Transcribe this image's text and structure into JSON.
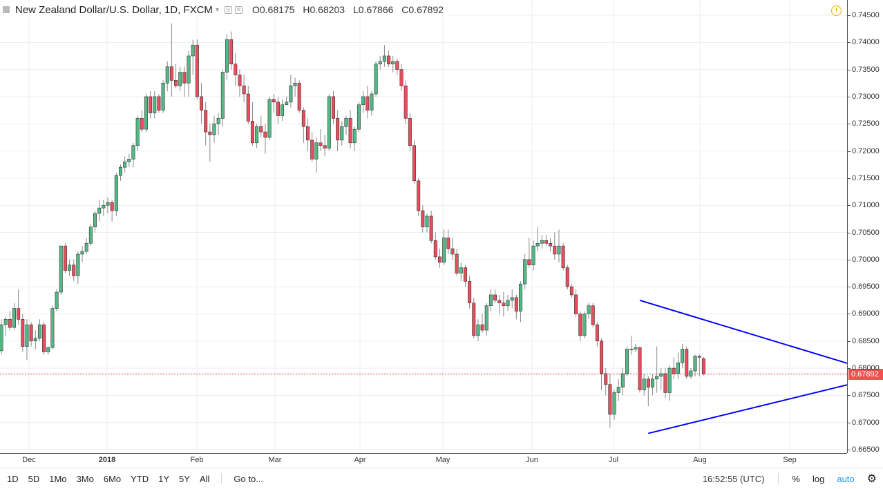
{
  "legend": {
    "title": "New Zealand Dollar/U.S. Dollar, 1D, FXCM",
    "caret": "▾",
    "open_label": "O",
    "open": "0.68175",
    "high_label": "H",
    "high": "0.68203",
    "low_label": "L",
    "low": "0.67866",
    "close_label": "C",
    "close": "0.67892"
  },
  "alert_icon": "alert-clock-icon",
  "last_price_label": "0.67892",
  "toolbar": {
    "ranges": [
      "1D",
      "5D",
      "1Mo",
      "3Mo",
      "6Mo",
      "YTD",
      "1Y",
      "5Y",
      "All"
    ],
    "goto": "Go to...",
    "clock": "16:52:55 (UTC)",
    "percent": "%",
    "log": "log",
    "auto": "auto",
    "settings_icon": "gear-icon"
  },
  "colors": {
    "up": "#53b987",
    "down": "#eb4d5c",
    "wick": "#888888",
    "trendline": "#0000ff",
    "grid": "#e9edf2",
    "last_price_line": "#d32f2f"
  },
  "chart_data": {
    "type": "candlestick",
    "title": "New Zealand Dollar/U.S. Dollar, 1D, FXCM",
    "ylim": [
      0.6645,
      0.7465
    ],
    "y_ticks": [
      "0.74500",
      "0.74000",
      "0.73500",
      "0.73000",
      "0.72500",
      "0.72000",
      "0.71500",
      "0.71000",
      "0.70500",
      "0.70000",
      "0.69500",
      "0.69000",
      "0.68500",
      "0.68000",
      "0.67500",
      "0.67000",
      "0.66500"
    ],
    "x_ticks": [
      "Dec",
      "2018",
      "Feb",
      "Mar",
      "Apr",
      "May",
      "Jun",
      "Jul",
      "Aug",
      "Sep"
    ],
    "last_price": 0.67892,
    "grid": true,
    "candles_ohlc": [
      [
        0.6832,
        0.689,
        0.6825,
        0.688
      ],
      [
        0.688,
        0.6895,
        0.686,
        0.689
      ],
      [
        0.689,
        0.6905,
        0.687,
        0.6875
      ],
      [
        0.6875,
        0.692,
        0.687,
        0.691
      ],
      [
        0.691,
        0.6945,
        0.688,
        0.689
      ],
      [
        0.689,
        0.69,
        0.683,
        0.684
      ],
      [
        0.684,
        0.689,
        0.6815,
        0.688
      ],
      [
        0.688,
        0.6885,
        0.684,
        0.685
      ],
      [
        0.685,
        0.687,
        0.6835,
        0.6855
      ],
      [
        0.6855,
        0.689,
        0.685,
        0.688
      ],
      [
        0.688,
        0.6885,
        0.6825,
        0.683
      ],
      [
        0.683,
        0.684,
        0.6825,
        0.6838
      ],
      [
        0.6838,
        0.6915,
        0.6835,
        0.691
      ],
      [
        0.691,
        0.6945,
        0.6905,
        0.694
      ],
      [
        0.694,
        0.7025,
        0.6935,
        0.7025
      ],
      [
        0.7025,
        0.703,
        0.6975,
        0.698
      ],
      [
        0.698,
        0.7,
        0.697,
        0.699
      ],
      [
        0.699,
        0.7,
        0.696,
        0.697
      ],
      [
        0.697,
        0.7015,
        0.6955,
        0.701
      ],
      [
        0.701,
        0.7025,
        0.6995,
        0.7015
      ],
      [
        0.7015,
        0.704,
        0.701,
        0.703
      ],
      [
        0.703,
        0.7065,
        0.7025,
        0.706
      ],
      [
        0.706,
        0.709,
        0.705,
        0.7085
      ],
      [
        0.7085,
        0.711,
        0.707,
        0.7095
      ],
      [
        0.7095,
        0.711,
        0.708,
        0.71
      ],
      [
        0.71,
        0.7115,
        0.7085,
        0.7105
      ],
      [
        0.7105,
        0.711,
        0.707,
        0.709
      ],
      [
        0.709,
        0.716,
        0.708,
        0.7155
      ],
      [
        0.7155,
        0.7175,
        0.7145,
        0.717
      ],
      [
        0.717,
        0.719,
        0.716,
        0.718
      ],
      [
        0.718,
        0.7195,
        0.717,
        0.7185
      ],
      [
        0.7185,
        0.7215,
        0.717,
        0.721
      ],
      [
        0.721,
        0.7265,
        0.72,
        0.726
      ],
      [
        0.726,
        0.7275,
        0.7235,
        0.724
      ],
      [
        0.724,
        0.7305,
        0.7235,
        0.73
      ],
      [
        0.73,
        0.731,
        0.726,
        0.727
      ],
      [
        0.727,
        0.731,
        0.726,
        0.73
      ],
      [
        0.73,
        0.7305,
        0.727,
        0.7275
      ],
      [
        0.7275,
        0.733,
        0.727,
        0.7325
      ],
      [
        0.7325,
        0.7365,
        0.731,
        0.7355
      ],
      [
        0.7355,
        0.7435,
        0.73,
        0.733
      ],
      [
        0.733,
        0.736,
        0.7315,
        0.732
      ],
      [
        0.732,
        0.7355,
        0.731,
        0.7345
      ],
      [
        0.7345,
        0.7355,
        0.73,
        0.7325
      ],
      [
        0.7325,
        0.7385,
        0.73,
        0.7375
      ],
      [
        0.7375,
        0.7405,
        0.734,
        0.7395
      ],
      [
        0.7395,
        0.7405,
        0.7295,
        0.73
      ],
      [
        0.73,
        0.7325,
        0.725,
        0.7275
      ],
      [
        0.7275,
        0.729,
        0.721,
        0.7235
      ],
      [
        0.7235,
        0.725,
        0.718,
        0.723
      ],
      [
        0.723,
        0.7265,
        0.7215,
        0.725
      ],
      [
        0.725,
        0.727,
        0.723,
        0.726
      ],
      [
        0.726,
        0.735,
        0.7245,
        0.7345
      ],
      [
        0.7345,
        0.7415,
        0.733,
        0.7405
      ],
      [
        0.7405,
        0.742,
        0.735,
        0.736
      ],
      [
        0.736,
        0.738,
        0.732,
        0.734
      ],
      [
        0.734,
        0.735,
        0.73,
        0.732
      ],
      [
        0.732,
        0.734,
        0.729,
        0.7305
      ],
      [
        0.7305,
        0.732,
        0.725,
        0.7255
      ],
      [
        0.7255,
        0.729,
        0.721,
        0.7215
      ],
      [
        0.7215,
        0.725,
        0.7205,
        0.7245
      ],
      [
        0.7245,
        0.7265,
        0.7225,
        0.7235
      ],
      [
        0.7235,
        0.725,
        0.7195,
        0.7225
      ],
      [
        0.7225,
        0.73,
        0.722,
        0.7295
      ],
      [
        0.7295,
        0.7305,
        0.727,
        0.729
      ],
      [
        0.729,
        0.73,
        0.725,
        0.7265
      ],
      [
        0.7265,
        0.7295,
        0.7255,
        0.7285
      ],
      [
        0.7285,
        0.73,
        0.7285,
        0.729
      ],
      [
        0.729,
        0.734,
        0.728,
        0.732
      ],
      [
        0.732,
        0.7335,
        0.73,
        0.7325
      ],
      [
        0.7325,
        0.733,
        0.727,
        0.7275
      ],
      [
        0.7275,
        0.728,
        0.7215,
        0.7245
      ],
      [
        0.7245,
        0.726,
        0.72,
        0.722
      ],
      [
        0.722,
        0.7235,
        0.718,
        0.7185
      ],
      [
        0.7185,
        0.7225,
        0.716,
        0.7215
      ],
      [
        0.7215,
        0.724,
        0.72,
        0.721
      ],
      [
        0.721,
        0.723,
        0.719,
        0.7205
      ],
      [
        0.7205,
        0.7305,
        0.72,
        0.73
      ],
      [
        0.73,
        0.731,
        0.725,
        0.726
      ],
      [
        0.726,
        0.7275,
        0.72,
        0.722
      ],
      [
        0.722,
        0.7255,
        0.721,
        0.7245
      ],
      [
        0.7245,
        0.7265,
        0.723,
        0.726
      ],
      [
        0.726,
        0.7275,
        0.7205,
        0.7215
      ],
      [
        0.7215,
        0.7245,
        0.72,
        0.724
      ],
      [
        0.724,
        0.729,
        0.7235,
        0.7285
      ],
      [
        0.7285,
        0.731,
        0.727,
        0.73
      ],
      [
        0.73,
        0.732,
        0.726,
        0.7275
      ],
      [
        0.7275,
        0.731,
        0.7265,
        0.7305
      ],
      [
        0.7305,
        0.7365,
        0.73,
        0.736
      ],
      [
        0.736,
        0.7375,
        0.735,
        0.7365
      ],
      [
        0.7365,
        0.7395,
        0.7355,
        0.7375
      ],
      [
        0.7375,
        0.7385,
        0.7355,
        0.736
      ],
      [
        0.736,
        0.7375,
        0.7345,
        0.7365
      ],
      [
        0.7365,
        0.737,
        0.734,
        0.735
      ],
      [
        0.735,
        0.736,
        0.731,
        0.732
      ],
      [
        0.732,
        0.733,
        0.725,
        0.726
      ],
      [
        0.726,
        0.727,
        0.72,
        0.721
      ],
      [
        0.721,
        0.722,
        0.714,
        0.7145
      ],
      [
        0.7145,
        0.715,
        0.708,
        0.709
      ],
      [
        0.709,
        0.71,
        0.705,
        0.706
      ],
      [
        0.706,
        0.7085,
        0.705,
        0.708
      ],
      [
        0.708,
        0.709,
        0.703,
        0.7035
      ],
      [
        0.7035,
        0.705,
        0.7,
        0.7005
      ],
      [
        0.7005,
        0.702,
        0.6985,
        0.6995
      ],
      [
        0.6995,
        0.7055,
        0.699,
        0.704
      ],
      [
        0.704,
        0.7055,
        0.701,
        0.702
      ],
      [
        0.702,
        0.704,
        0.7,
        0.701
      ],
      [
        0.701,
        0.702,
        0.697,
        0.6975
      ],
      [
        0.6975,
        0.6995,
        0.696,
        0.6985
      ],
      [
        0.6985,
        0.699,
        0.695,
        0.696
      ],
      [
        0.696,
        0.697,
        0.691,
        0.692
      ],
      [
        0.692,
        0.693,
        0.6855,
        0.686
      ],
      [
        0.686,
        0.689,
        0.685,
        0.688
      ],
      [
        0.688,
        0.69,
        0.6865,
        0.687
      ],
      [
        0.687,
        0.692,
        0.686,
        0.6915
      ],
      [
        0.6915,
        0.6945,
        0.6905,
        0.6935
      ],
      [
        0.6935,
        0.6945,
        0.692,
        0.6925
      ],
      [
        0.6925,
        0.6935,
        0.69,
        0.692
      ],
      [
        0.692,
        0.694,
        0.6895,
        0.6915
      ],
      [
        0.6915,
        0.6935,
        0.6905,
        0.6925
      ],
      [
        0.6925,
        0.6945,
        0.691,
        0.693
      ],
      [
        0.693,
        0.6935,
        0.689,
        0.6905
      ],
      [
        0.6905,
        0.696,
        0.6885,
        0.6955
      ],
      [
        0.6955,
        0.701,
        0.6945,
        0.7
      ],
      [
        0.7,
        0.704,
        0.6985,
        0.699
      ],
      [
        0.699,
        0.7035,
        0.698,
        0.7025
      ],
      [
        0.7025,
        0.706,
        0.7015,
        0.703
      ],
      [
        0.703,
        0.7045,
        0.702,
        0.7035
      ],
      [
        0.7035,
        0.7045,
        0.7025,
        0.703
      ],
      [
        0.703,
        0.704,
        0.7015,
        0.7025
      ],
      [
        0.7025,
        0.705,
        0.7,
        0.701
      ],
      [
        0.701,
        0.7055,
        0.6995,
        0.7025
      ],
      [
        0.7025,
        0.703,
        0.698,
        0.6985
      ],
      [
        0.6985,
        0.699,
        0.6945,
        0.695
      ],
      [
        0.695,
        0.6955,
        0.693,
        0.6935
      ],
      [
        0.6935,
        0.6945,
        0.6895,
        0.69
      ],
      [
        0.69,
        0.6905,
        0.685,
        0.686
      ],
      [
        0.686,
        0.6905,
        0.6855,
        0.69
      ],
      [
        0.69,
        0.692,
        0.689,
        0.6915
      ],
      [
        0.6915,
        0.692,
        0.6875,
        0.688
      ],
      [
        0.688,
        0.6885,
        0.684,
        0.685
      ],
      [
        0.685,
        0.6855,
        0.676,
        0.679
      ],
      [
        0.679,
        0.68,
        0.675,
        0.677
      ],
      [
        0.677,
        0.679,
        0.669,
        0.6715
      ],
      [
        0.6715,
        0.676,
        0.6705,
        0.6755
      ],
      [
        0.6755,
        0.678,
        0.674,
        0.6765
      ],
      [
        0.6765,
        0.68,
        0.675,
        0.679
      ],
      [
        0.679,
        0.684,
        0.6785,
        0.6835
      ],
      [
        0.6835,
        0.686,
        0.6825,
        0.6835
      ],
      [
        0.6835,
        0.6845,
        0.683,
        0.6838
      ],
      [
        0.6838,
        0.684,
        0.6755,
        0.676
      ],
      [
        0.676,
        0.679,
        0.675,
        0.678
      ],
      [
        0.678,
        0.6785,
        0.673,
        0.6765
      ],
      [
        0.6765,
        0.679,
        0.675,
        0.678
      ],
      [
        0.678,
        0.684,
        0.6755,
        0.6785
      ],
      [
        0.6785,
        0.68,
        0.676,
        0.679
      ],
      [
        0.679,
        0.68,
        0.6745,
        0.6755
      ],
      [
        0.6755,
        0.6805,
        0.674,
        0.68
      ],
      [
        0.68,
        0.682,
        0.678,
        0.679
      ],
      [
        0.679,
        0.683,
        0.678,
        0.681
      ],
      [
        0.681,
        0.6845,
        0.68,
        0.6835
      ],
      [
        0.6835,
        0.684,
        0.678,
        0.6785
      ],
      [
        0.6785,
        0.68,
        0.678,
        0.6795
      ],
      [
        0.6795,
        0.6825,
        0.6785,
        0.6822
      ],
      [
        0.6822,
        0.6825,
        0.6785,
        0.682
      ],
      [
        0.68175,
        0.68203,
        0.67866,
        0.67892
      ]
    ],
    "trendlines": [
      {
        "name": "upper",
        "from": {
          "bar": 150,
          "price": 0.6925
        },
        "to": {
          "bar": 208,
          "price": 0.6787
        }
      },
      {
        "name": "lower",
        "from": {
          "bar": 152,
          "price": 0.668
        },
        "to": {
          "bar": 208,
          "price": 0.6787
        }
      }
    ]
  }
}
